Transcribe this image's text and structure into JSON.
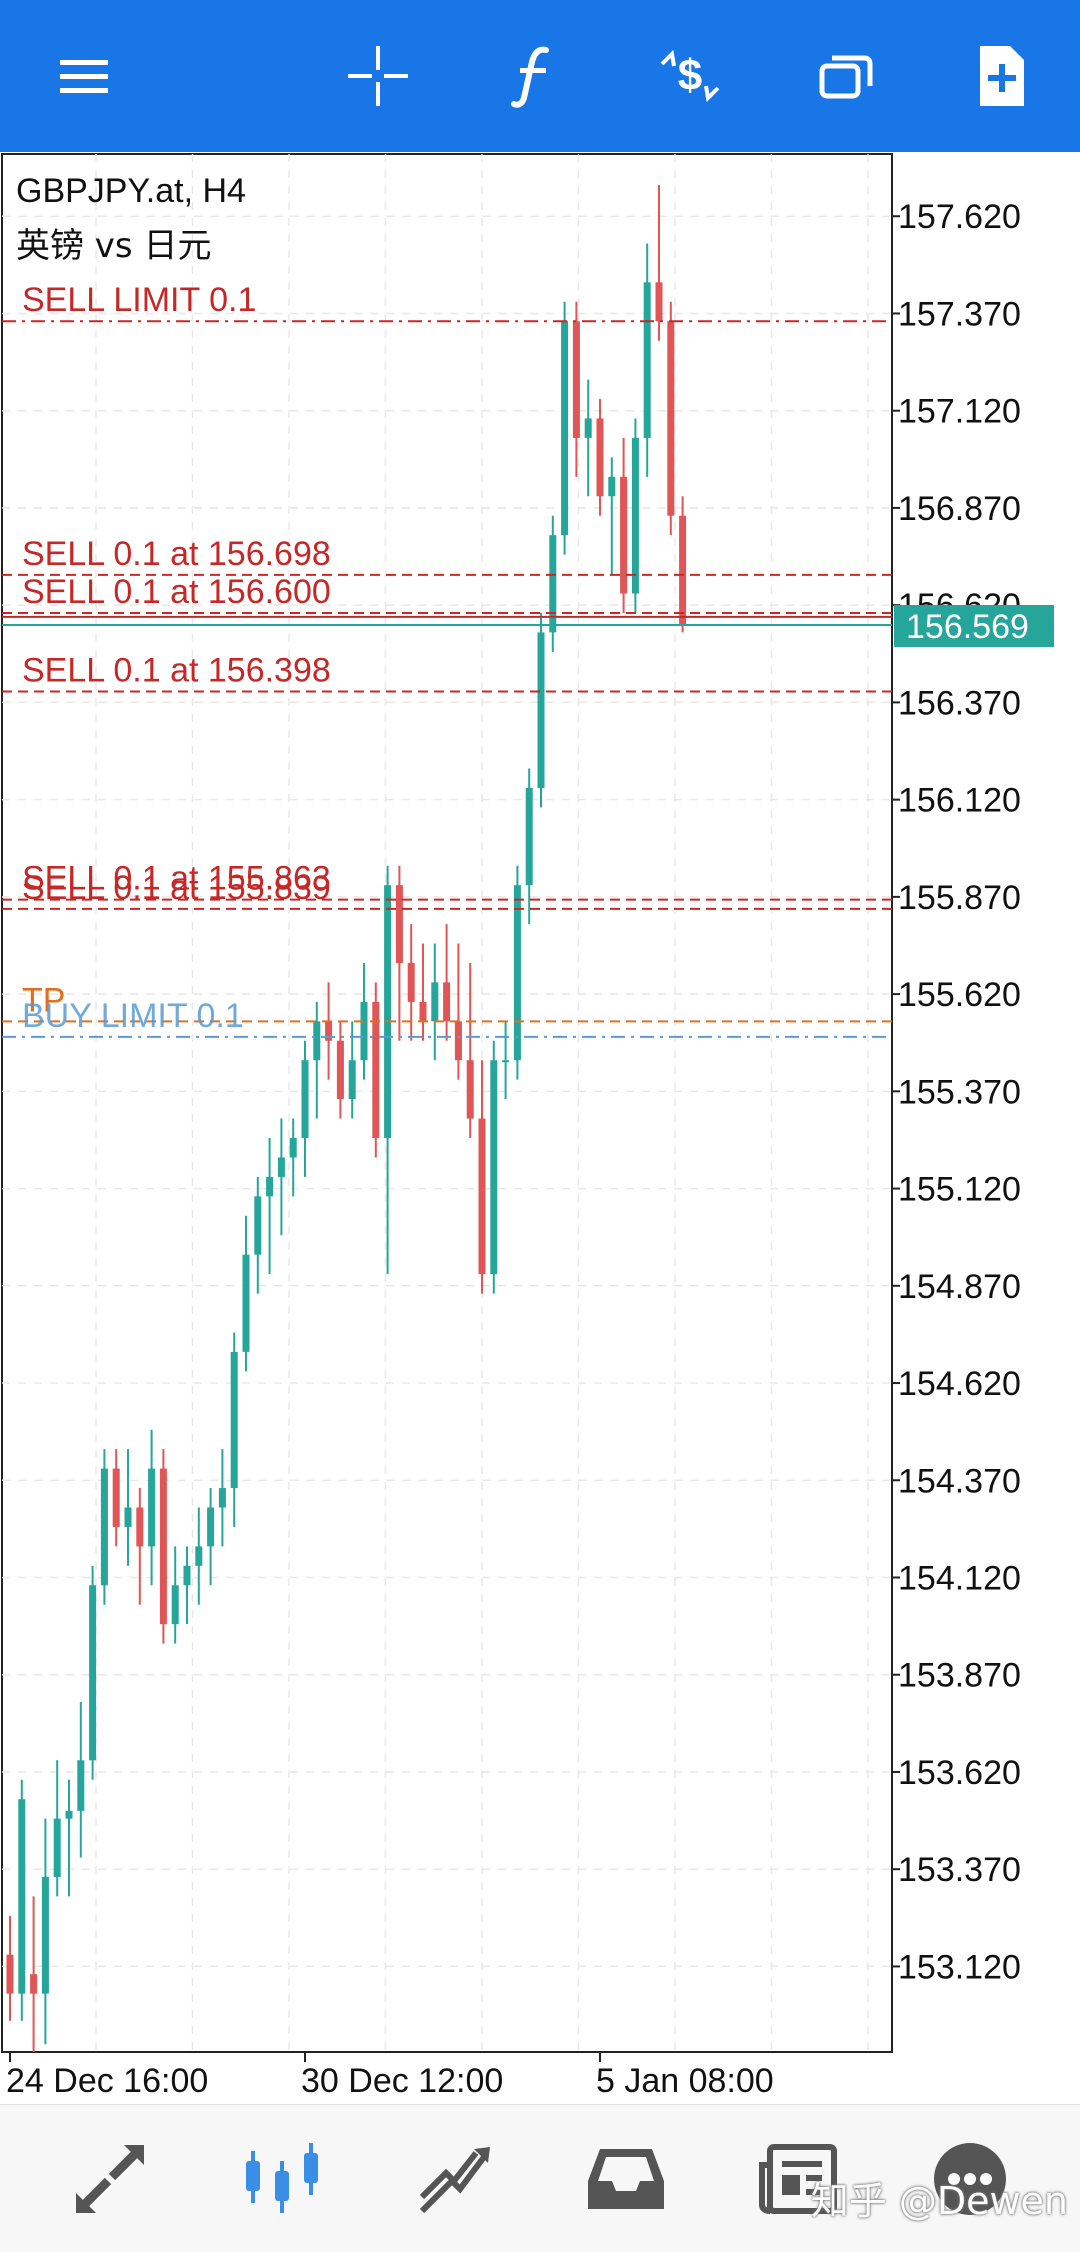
{
  "toolbar": {
    "menu_icon": "hamburger-menu-icon",
    "crosshair_icon": "crosshair-icon",
    "indicators_icon": "function-f-icon",
    "trade_icon": "dollar-trade-icon",
    "windows_icon": "windows-icon",
    "new_order_icon": "new-document-plus-icon"
  },
  "chart": {
    "symbol": "GBPJPY.at, H4",
    "description": "英镑 vs 日元",
    "current_price": "156.569",
    "colors": {
      "bull": "#26a69a",
      "bear": "#e05555",
      "order": "#c62828",
      "buy_limit": "#5a9bd5",
      "tp": "#e07020",
      "grid": "#e8e8e8"
    }
  },
  "chart_data": {
    "type": "candlestick",
    "symbol": "GBPJPY.at",
    "timeframe": "H4",
    "y_ticks": [
      "157.620",
      "157.370",
      "157.120",
      "156.870",
      "156.620",
      "156.370",
      "156.120",
      "155.870",
      "155.620",
      "155.370",
      "155.120",
      "154.870",
      "154.620",
      "154.370",
      "154.120",
      "153.870",
      "153.620",
      "153.370",
      "153.120"
    ],
    "ylim": [
      152.9,
      157.78
    ],
    "x_labels": [
      {
        "label": "24 Dec 16:00",
        "index": 0
      },
      {
        "label": "30 Dec 12:00",
        "index": 25
      },
      {
        "label": "5 Jan 08:00",
        "index": 50
      }
    ],
    "order_lines": [
      {
        "label": "SELL LIMIT 0.1",
        "price": 157.35,
        "style": "dashdot",
        "kind": "sell_limit"
      },
      {
        "label": "SELL 0.1 at 156.698",
        "price": 156.698,
        "style": "dashed",
        "kind": "sell"
      },
      {
        "label": "SELL 0.1 at 156.600",
        "price": 156.6,
        "style": "dashed",
        "kind": "sell"
      },
      {
        "label": "SELL 0.1 at 156.398",
        "price": 156.398,
        "style": "dashed",
        "kind": "sell"
      },
      {
        "label": "SELL 0.1 at 155.863",
        "price": 155.863,
        "style": "dashed",
        "kind": "sell"
      },
      {
        "label": "SELL 0.1 at 155.839",
        "price": 155.839,
        "style": "dashed",
        "kind": "sell"
      },
      {
        "label": "TP",
        "price": 155.55,
        "style": "dashed",
        "kind": "tp"
      },
      {
        "label": "BUY LIMIT 0.1",
        "price": 155.51,
        "style": "dashdot",
        "kind": "buy_limit"
      }
    ],
    "bid_price": 156.569,
    "ask_price": 156.59,
    "candles": [
      [
        153.15,
        153.25,
        152.98,
        153.05
      ],
      [
        153.05,
        153.6,
        152.98,
        153.55
      ],
      [
        153.1,
        153.3,
        152.9,
        153.05
      ],
      [
        153.05,
        153.5,
        152.92,
        153.35
      ],
      [
        153.35,
        153.65,
        153.3,
        153.5
      ],
      [
        153.5,
        153.6,
        153.3,
        153.52
      ],
      [
        153.52,
        153.8,
        153.4,
        153.65
      ],
      [
        153.65,
        154.15,
        153.6,
        154.1
      ],
      [
        154.1,
        154.45,
        154.05,
        154.4
      ],
      [
        154.4,
        154.45,
        154.2,
        154.25
      ],
      [
        154.25,
        154.45,
        154.15,
        154.3
      ],
      [
        154.3,
        154.35,
        154.05,
        154.2
      ],
      [
        154.2,
        154.5,
        154.1,
        154.4
      ],
      [
        154.4,
        154.45,
        153.95,
        154.0
      ],
      [
        154.0,
        154.2,
        153.95,
        154.1
      ],
      [
        154.1,
        154.2,
        154.0,
        154.15
      ],
      [
        154.15,
        154.3,
        154.05,
        154.2
      ],
      [
        154.2,
        154.35,
        154.1,
        154.3
      ],
      [
        154.3,
        154.45,
        154.2,
        154.35
      ],
      [
        154.35,
        154.75,
        154.25,
        154.7
      ],
      [
        154.7,
        155.05,
        154.65,
        154.95
      ],
      [
        154.95,
        155.15,
        154.85,
        155.1
      ],
      [
        155.1,
        155.25,
        154.9,
        155.15
      ],
      [
        155.15,
        155.3,
        155.0,
        155.2
      ],
      [
        155.2,
        155.3,
        155.1,
        155.25
      ],
      [
        155.25,
        155.5,
        155.15,
        155.45
      ],
      [
        155.45,
        155.6,
        155.3,
        155.55
      ],
      [
        155.55,
        155.65,
        155.4,
        155.5
      ],
      [
        155.5,
        155.55,
        155.3,
        155.35
      ],
      [
        155.35,
        155.55,
        155.3,
        155.45
      ],
      [
        155.45,
        155.7,
        155.4,
        155.6
      ],
      [
        155.6,
        155.65,
        155.2,
        155.25
      ],
      [
        155.25,
        155.95,
        154.9,
        155.9
      ],
      [
        155.9,
        155.95,
        155.5,
        155.7
      ],
      [
        155.7,
        155.8,
        155.5,
        155.6
      ],
      [
        155.6,
        155.75,
        155.5,
        155.55
      ],
      [
        155.55,
        155.75,
        155.45,
        155.65
      ],
      [
        155.65,
        155.8,
        155.5,
        155.55
      ],
      [
        155.55,
        155.75,
        155.4,
        155.45
      ],
      [
        155.45,
        155.7,
        155.25,
        155.3
      ],
      [
        155.3,
        155.45,
        154.85,
        154.9
      ],
      [
        154.9,
        155.5,
        154.85,
        155.45
      ],
      [
        155.45,
        155.55,
        155.35,
        155.45
      ],
      [
        155.45,
        155.95,
        155.4,
        155.9
      ],
      [
        155.9,
        156.2,
        155.8,
        156.15
      ],
      [
        156.15,
        156.6,
        156.1,
        156.55
      ],
      [
        156.55,
        156.85,
        156.5,
        156.8
      ],
      [
        156.8,
        157.4,
        156.75,
        157.35
      ],
      [
        157.35,
        157.4,
        156.95,
        157.05
      ],
      [
        157.05,
        157.2,
        156.9,
        157.1
      ],
      [
        157.1,
        157.15,
        156.85,
        156.9
      ],
      [
        156.9,
        157.0,
        156.7,
        156.95
      ],
      [
        156.95,
        157.05,
        156.6,
        156.65
      ],
      [
        156.65,
        157.1,
        156.6,
        157.05
      ],
      [
        157.05,
        157.55,
        156.95,
        157.45
      ],
      [
        157.45,
        157.7,
        157.3,
        157.35
      ],
      [
        157.35,
        157.4,
        156.8,
        156.85
      ],
      [
        156.85,
        156.9,
        156.55,
        156.57
      ]
    ]
  },
  "bottom_nav": {
    "quotes_icon": "quotes-arrows-icon",
    "chart_icon": "candlestick-chart-icon",
    "trade_icon": "trade-trend-icon",
    "history_icon": "history-inbox-icon",
    "news_icon": "news-icon",
    "messages_icon": "messages-chat-icon"
  },
  "watermark": "知乎 @Dewen"
}
